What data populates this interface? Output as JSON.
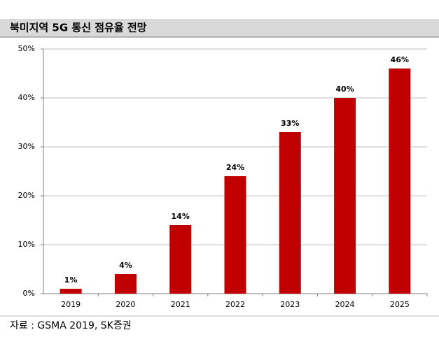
{
  "chart_data": {
    "type": "bar",
    "title": "북미지역 5G 통신 점유율 전망",
    "categories": [
      "2019",
      "2020",
      "2021",
      "2022",
      "2023",
      "2024",
      "2025"
    ],
    "values": [
      1,
      4,
      14,
      24,
      33,
      40,
      46
    ],
    "value_labels": [
      "1%",
      "4%",
      "14%",
      "24%",
      "33%",
      "40%",
      "46%"
    ],
    "color": "#c00000",
    "ylim": [
      0,
      50
    ],
    "yticks": [
      {
        "value": 0,
        "label": "0%"
      },
      {
        "value": 10,
        "label": "10%"
      },
      {
        "value": 20,
        "label": "20%"
      },
      {
        "value": 30,
        "label": "30%"
      },
      {
        "value": 40,
        "label": "40%"
      },
      {
        "value": 50,
        "label": "50%"
      }
    ],
    "grid": true,
    "source": "자료 : GSMA 2019, SK증권"
  }
}
